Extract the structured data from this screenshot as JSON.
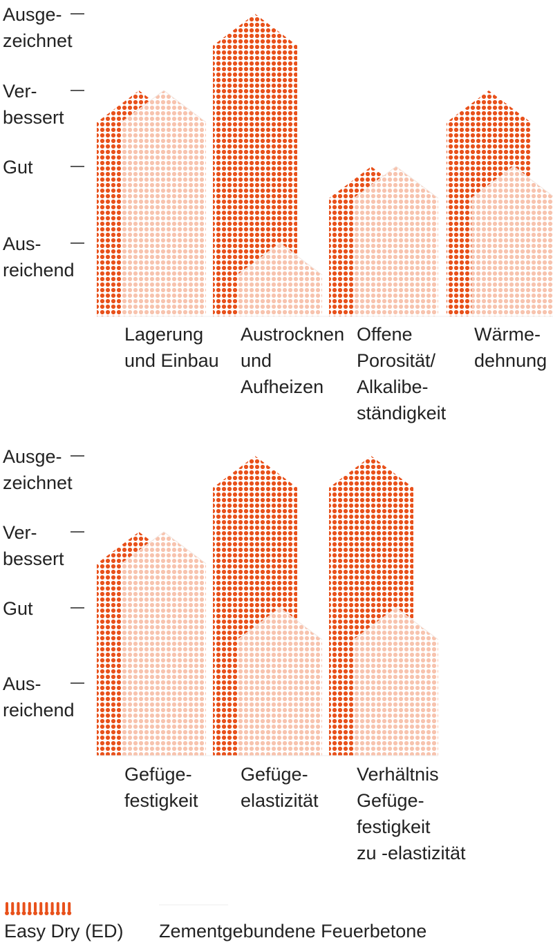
{
  "chart_data": [
    {
      "type": "bar",
      "levels": [
        "Ausreichend",
        "Gut",
        "Verbessert",
        "Ausgezeichnet"
      ],
      "level_labels": [
        [
          "Aus-",
          "reichend"
        ],
        [
          "Gut"
        ],
        [
          "Ver-",
          "bessert"
        ],
        [
          "Ausge-",
          "zeichnet"
        ]
      ],
      "categories": [
        [
          "Lagerung",
          "und Einbau"
        ],
        [
          "Austrocknen",
          "und",
          "Aufheizen"
        ],
        [
          "Offene",
          "Porosität/",
          "Alkalibe-",
          "ständigkeit"
        ],
        [
          "Wärme-",
          "dehnung"
        ]
      ],
      "series": [
        {
          "name": "Easy Dry (ED)",
          "values": [
            3,
            4,
            2,
            3
          ]
        },
        {
          "name": "Zementgebundene Feuerbetone",
          "values": [
            3,
            1,
            2,
            2
          ]
        }
      ]
    },
    {
      "type": "bar",
      "levels": [
        "Ausreichend",
        "Gut",
        "Verbessert",
        "Ausgezeichnet"
      ],
      "level_labels": [
        [
          "Aus-",
          "reichend"
        ],
        [
          "Gut"
        ],
        [
          "Ver-",
          "bessert"
        ],
        [
          "Ausge-",
          "zeichnet"
        ]
      ],
      "categories": [
        [
          "Gefüge-",
          "festigkeit"
        ],
        [
          "Gefüge-",
          "elastizität"
        ],
        [
          "Verhältnis",
          "Gefüge-",
          "festigkeit",
          "zu -elastizität"
        ]
      ],
      "series": [
        {
          "name": "Easy Dry (ED)",
          "values": [
            3,
            4,
            4
          ]
        },
        {
          "name": "Zementgebundene Feuerbetone",
          "values": [
            3,
            2,
            2
          ]
        }
      ]
    }
  ],
  "legend": {
    "items": [
      {
        "label": "Easy Dry (ED)"
      },
      {
        "label": "Zementgebundene Feuerbetone"
      }
    ]
  },
  "colors": {
    "ed": "#e8511b",
    "cement": "#f7c3ae",
    "text": "#222222",
    "tick": "#222222"
  }
}
